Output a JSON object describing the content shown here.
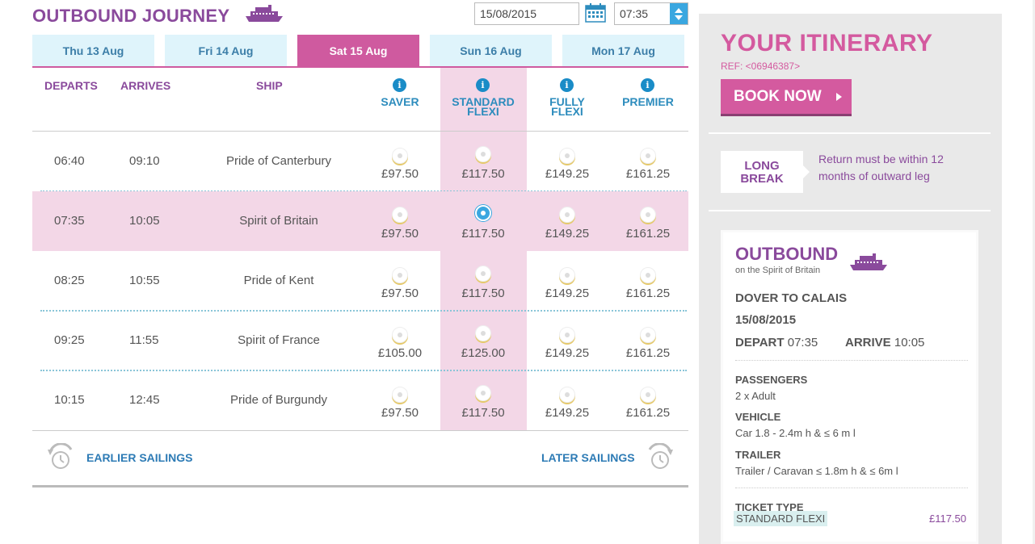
{
  "journey": {
    "title": "OUTBOUND JOURNEY",
    "date_value": "15/08/2015",
    "time_value": "07:35"
  },
  "tabs": [
    {
      "label": "Thu 13 Aug",
      "active": false
    },
    {
      "label": "Fri 14 Aug",
      "active": false
    },
    {
      "label": "Sat 15 Aug",
      "active": true
    },
    {
      "label": "Sun 16 Aug",
      "active": false
    },
    {
      "label": "Mon 17 Aug",
      "active": false
    }
  ],
  "headers": {
    "departs": "DEPARTS",
    "arrives": "ARRIVES",
    "ship": "SHIP",
    "saver": "SAVER",
    "standard_line1": "STANDARD",
    "standard_line2": "FLEXI",
    "fully_line1": "FULLY",
    "fully_line2": "FLEXI",
    "premier": "PREMIER",
    "info_glyph": "i"
  },
  "sailings": [
    {
      "departs": "06:40",
      "arrives": "09:10",
      "ship": "Pride of Canterbury",
      "saver": "£97.50",
      "standard": "£117.50",
      "fully": "£149.25",
      "premier": "£161.25"
    },
    {
      "departs": "07:35",
      "arrives": "10:05",
      "ship": "Spirit of Britain",
      "saver": "£97.50",
      "standard": "£117.50",
      "fully": "£149.25",
      "premier": "£161.25"
    },
    {
      "departs": "08:25",
      "arrives": "10:55",
      "ship": "Pride of Kent",
      "saver": "£97.50",
      "standard": "£117.50",
      "fully": "£149.25",
      "premier": "£161.25"
    },
    {
      "departs": "09:25",
      "arrives": "11:55",
      "ship": "Spirit of France",
      "saver": "£105.00",
      "standard": "£125.00",
      "fully": "£149.25",
      "premier": "£161.25"
    },
    {
      "departs": "10:15",
      "arrives": "12:45",
      "ship": "Pride of Burgundy",
      "saver": "£97.50",
      "standard": "£117.50",
      "fully": "£149.25",
      "premier": "£161.25"
    }
  ],
  "selected_row": 1,
  "selected_fare": "standard",
  "nav": {
    "earlier": "EARLIER SAILINGS",
    "later": "LATER SAILINGS"
  },
  "itinerary": {
    "title": "YOUR ITINERARY",
    "ref": "REF: <06946387>",
    "book_now": "BOOK NOW",
    "long_break_line1": "LONG",
    "long_break_line2": "BREAK",
    "long_break_text": "Return must be within 12 months of outward leg",
    "outbound_title": "OUTBOUND",
    "outbound_sub": "on the Spirit of Britain",
    "route": "DOVER TO CALAIS",
    "date": "15/08/2015",
    "depart_label": "DEPART",
    "depart_time": "07:35",
    "arrive_label": "ARRIVE",
    "arrive_time": "10:05",
    "passengers_label": "PASSENGERS",
    "passengers_value": "2 x Adult",
    "vehicle_label": "VEHICLE",
    "vehicle_value": "Car 1.8 - 2.4m h & ≤ 6 m l",
    "trailer_label": "TRAILER",
    "trailer_value": "Trailer / Caravan ≤ 1.8m h & ≤ 6m l",
    "ticket_label": "TICKET TYPE",
    "ticket_value": "STANDARD FLEXI",
    "ticket_price": "£117.50"
  },
  "colors": {
    "brand_purple": "#8a4a9c",
    "brand_pink": "#cf5a9f",
    "link_blue": "#2d7bb5",
    "tab_bg": "#dff4fb",
    "selected_row_bg": "#f3d7e7"
  },
  "icons": {
    "ship": "ferry-icon",
    "calendar": "calendar-icon",
    "info": "info-icon",
    "earlier": "clock-rewind-icon",
    "later": "clock-forward-icon"
  }
}
